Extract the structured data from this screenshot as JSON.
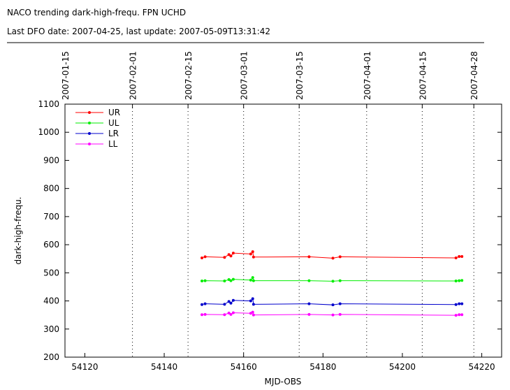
{
  "chart_data": {
    "type": "line",
    "title": "NACO trending dark-high-frequ. FPN UCHD",
    "subtitle": "Last DFO date: 2007-04-25, last update: 2007-05-09T13:31:42",
    "xlabel": "MJD-OBS",
    "ylabel": "dark-high-frequ.",
    "x": [
      54149.5,
      54150.3,
      54155.2,
      54156.3,
      54156.8,
      54157.4,
      54161.8,
      54162.3,
      54162.5,
      54176.5,
      54182.5,
      54184.3,
      54213.5,
      54214.3,
      54215
    ],
    "series": [
      {
        "name": "UR",
        "color": "#ff0000",
        "values": [
          553,
          557,
          555,
          565,
          560,
          570,
          567,
          575,
          556,
          557,
          552,
          557,
          553,
          558,
          558
        ]
      },
      {
        "name": "UL",
        "color": "#00ee00",
        "values": [
          471,
          472,
          471,
          476,
          472,
          477,
          474,
          483,
          472,
          472,
          470,
          472,
          471,
          472,
          473
        ]
      },
      {
        "name": "LR",
        "color": "#0000cc",
        "values": [
          387,
          390,
          388,
          398,
          392,
          402,
          400,
          408,
          388,
          390,
          386,
          390,
          387,
          390,
          390
        ]
      },
      {
        "name": "LL",
        "color": "#ff00ff",
        "values": [
          351,
          352,
          351,
          357,
          352,
          358,
          356,
          360,
          350,
          352,
          350,
          352,
          349,
          351,
          351
        ]
      }
    ],
    "xlim": [
      54115,
      54225
    ],
    "ylim": [
      200,
      1100
    ],
    "xticks": [
      54120,
      54140,
      54160,
      54180,
      54200,
      54220
    ],
    "yticks": [
      200,
      300,
      400,
      500,
      600,
      700,
      800,
      900,
      1000,
      1100
    ],
    "x2ticks": [
      {
        "value": 54115,
        "label": "2007-01-15"
      },
      {
        "value": 54132,
        "label": "2007-02-01"
      },
      {
        "value": 54146,
        "label": "2007-02-15"
      },
      {
        "value": 54160,
        "label": "2007-03-01"
      },
      {
        "value": 54174,
        "label": "2007-03-15"
      },
      {
        "value": 54191,
        "label": "2007-04-01"
      },
      {
        "value": 54205,
        "label": "2007-04-15"
      },
      {
        "value": 54218,
        "label": "2007-04-28"
      }
    ],
    "grid": true,
    "legend": "upper-left"
  }
}
